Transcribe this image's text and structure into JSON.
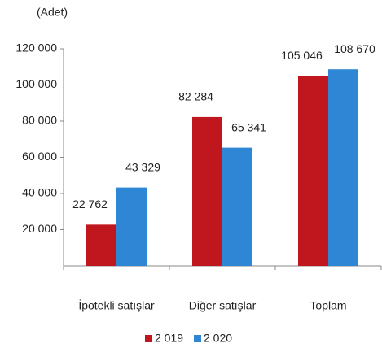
{
  "chart_data": {
    "type": "bar",
    "y_unit_label": "(Adet)",
    "categories": [
      "İpotekli satışlar",
      "Diğer satışlar",
      "Toplam"
    ],
    "series": [
      {
        "name": "2 019",
        "color": "#c0161e",
        "values": [
          22762,
          82284,
          105046
        ],
        "value_labels": [
          "22 762",
          "82 284",
          "105 046"
        ]
      },
      {
        "name": "2 020",
        "color": "#2e86d4",
        "values": [
          43329,
          65341,
          108670
        ],
        "value_labels": [
          "43 329",
          "65 341",
          "108 670"
        ]
      }
    ],
    "ylim": [
      0,
      120000
    ],
    "yticks": [
      {
        "value": 20000,
        "label": "20 000"
      },
      {
        "value": 40000,
        "label": "40 000"
      },
      {
        "value": 60000,
        "label": "60 000"
      },
      {
        "value": 80000,
        "label": "80 000"
      },
      {
        "value": 100000,
        "label": "100 000"
      },
      {
        "value": 120000,
        "label": "120 000"
      }
    ],
    "grid": false,
    "legend": "bottom"
  }
}
